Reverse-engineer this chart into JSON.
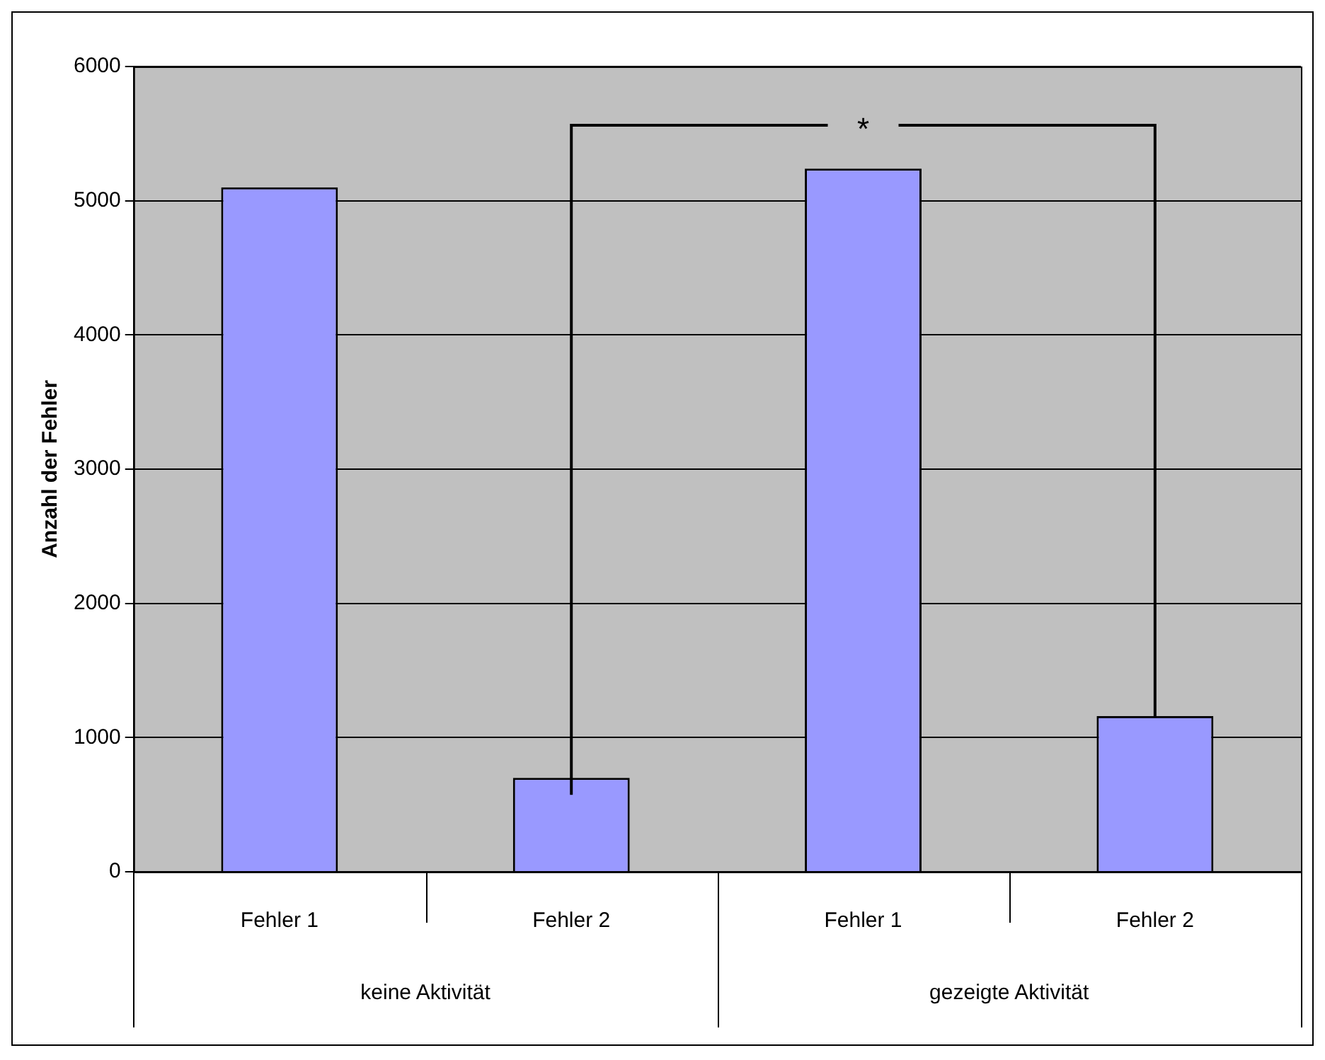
{
  "chart_data": {
    "type": "bar",
    "ylabel": "Anzahl der Fehler",
    "categories": [
      "Fehler 1",
      "Fehler 2",
      "Fehler 1",
      "Fehler 2"
    ],
    "values": [
      5100,
      700,
      5240,
      1160
    ],
    "color": "#9999ff",
    "ylim": [
      0,
      6000
    ],
    "yticks": [
      0,
      1000,
      2000,
      3000,
      4000,
      5000,
      6000
    ],
    "grid": "y",
    "legend": false,
    "annotations": [
      "keine Aktivität",
      "gezeigte Aktivität",
      "*"
    ]
  }
}
